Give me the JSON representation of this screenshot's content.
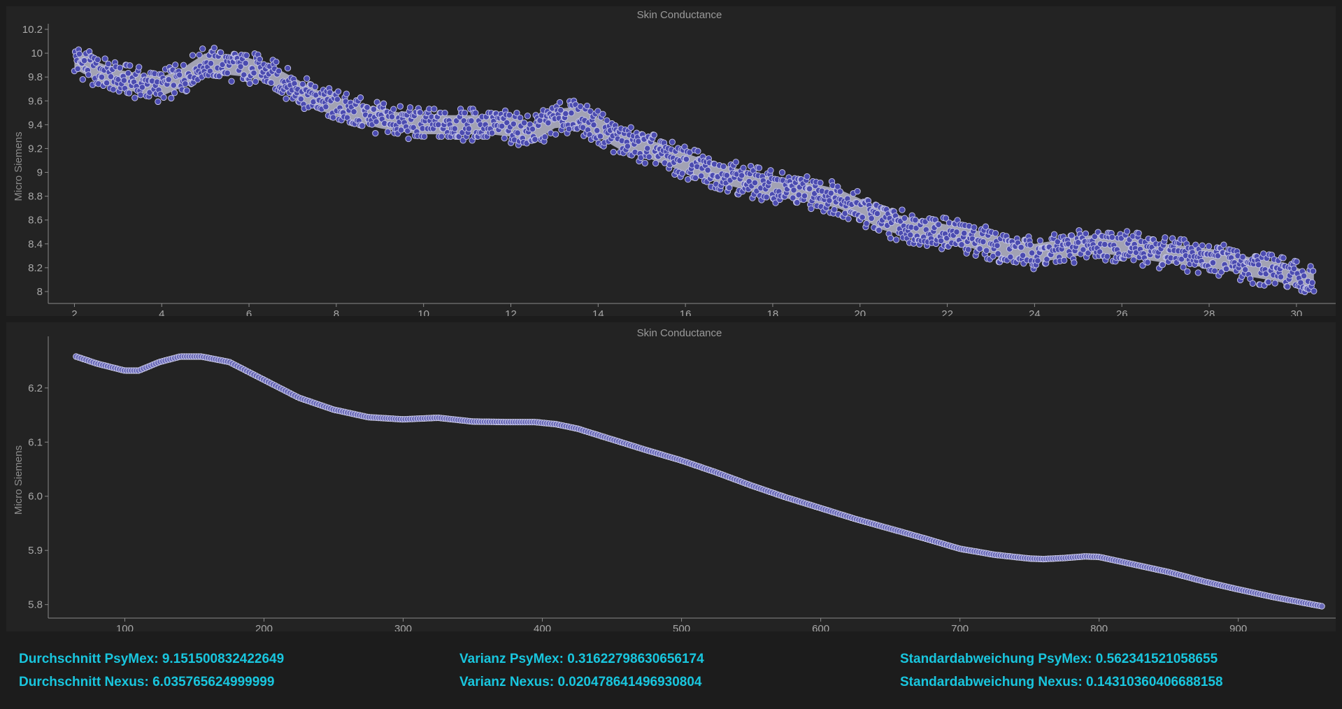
{
  "chart_data": [
    {
      "type": "scatter",
      "title": "Skin Conductance",
      "ylabel": "Micro Siemens",
      "xlim": [
        1.4,
        30.9
      ],
      "ylim": [
        7.9,
        10.2
      ],
      "xticks": [
        2,
        4,
        6,
        8,
        10,
        12,
        14,
        16,
        18,
        20,
        22,
        24,
        26,
        28,
        30
      ],
      "yticks": [
        "8",
        "8.2",
        "8.4",
        "8.6",
        "8.8",
        "9",
        "9.2",
        "9.4",
        "9.6",
        "9.8",
        "10",
        "10.2"
      ],
      "marker_fill": "#4b4bb0",
      "marker_stroke": "#c8c8e8",
      "band_color": "#b9b9cc",
      "series": [
        {
          "x": [
            2.0,
            2.5,
            3.0,
            3.5,
            4.0,
            4.5,
            5.0,
            5.5,
            6.0,
            6.5,
            7.0,
            7.5,
            8.0,
            8.5,
            9.0,
            9.5,
            10.0,
            10.5,
            11.0,
            11.5,
            12.0,
            12.5,
            13.0,
            13.5,
            14.0,
            14.5,
            15.0,
            15.5,
            16.0,
            16.5,
            17.0,
            17.5,
            18.0,
            18.5,
            19.0,
            19.5,
            20.0,
            20.5,
            21.0,
            21.5,
            22.0,
            22.5,
            23.0,
            23.5,
            24.0,
            24.5,
            25.0,
            25.5,
            26.0,
            26.5,
            27.0,
            27.5,
            28.0,
            28.5,
            29.0,
            29.5,
            30.0,
            30.4
          ],
          "y": [
            9.95,
            9.85,
            9.78,
            9.75,
            9.72,
            9.8,
            9.92,
            9.9,
            9.88,
            9.82,
            9.72,
            9.62,
            9.55,
            9.5,
            9.45,
            9.42,
            9.4,
            9.4,
            9.4,
            9.4,
            9.38,
            9.33,
            9.45,
            9.47,
            9.38,
            9.27,
            9.22,
            9.15,
            9.08,
            9.02,
            8.97,
            8.92,
            8.88,
            8.85,
            8.82,
            8.78,
            8.7,
            8.6,
            8.55,
            8.52,
            8.48,
            8.45,
            8.4,
            8.35,
            8.32,
            8.35,
            8.38,
            8.4,
            8.38,
            8.35,
            8.32,
            8.3,
            8.28,
            8.25,
            8.2,
            8.17,
            8.12,
            8.07
          ]
        }
      ]
    },
    {
      "type": "scatter",
      "title": "Skin Conductance",
      "ylabel": "Micro Siemens",
      "xlim": [
        45,
        970
      ],
      "ylim": [
        5.775,
        6.285
      ],
      "xticks": [
        100,
        200,
        300,
        400,
        500,
        600,
        700,
        800,
        900
      ],
      "yticks": [
        "5.8",
        "5.9",
        "6.0",
        "6.1",
        "6.2"
      ],
      "marker_fill": "#6a6ab8",
      "marker_stroke": "#d0d0ec",
      "series": [
        {
          "x": [
            65,
            80,
            100,
            110,
            125,
            140,
            155,
            175,
            200,
            225,
            250,
            275,
            300,
            325,
            350,
            375,
            395,
            410,
            425,
            450,
            475,
            500,
            525,
            550,
            575,
            600,
            625,
            650,
            675,
            700,
            725,
            750,
            760,
            775,
            790,
            800,
            825,
            850,
            875,
            900,
            925,
            960
          ],
          "y": [
            6.258,
            6.245,
            6.232,
            6.232,
            6.248,
            6.258,
            6.258,
            6.248,
            6.215,
            6.182,
            6.16,
            6.146,
            6.142,
            6.145,
            6.138,
            6.137,
            6.137,
            6.133,
            6.125,
            6.105,
            6.085,
            6.066,
            6.044,
            6.02,
            5.998,
            5.978,
            5.958,
            5.94,
            5.922,
            5.903,
            5.892,
            5.885,
            5.884,
            5.886,
            5.889,
            5.888,
            5.874,
            5.86,
            5.843,
            5.828,
            5.814,
            5.797
          ]
        }
      ]
    }
  ],
  "stats": {
    "mean_psymex": "Durchschnitt PsyMex: 9.151500832422649",
    "mean_nexus": "Durchschnitt Nexus: 6.035765624999999",
    "var_psymex": "Varianz PsyMex: 0.31622798630656174",
    "var_nexus": "Varianz Nexus: 0.020478641496930804",
    "std_psymex": "Standardabweichung PsyMex: 0.562341521058655",
    "std_nexus": "Standardabweichung Nexus: 0.14310360406688158"
  }
}
